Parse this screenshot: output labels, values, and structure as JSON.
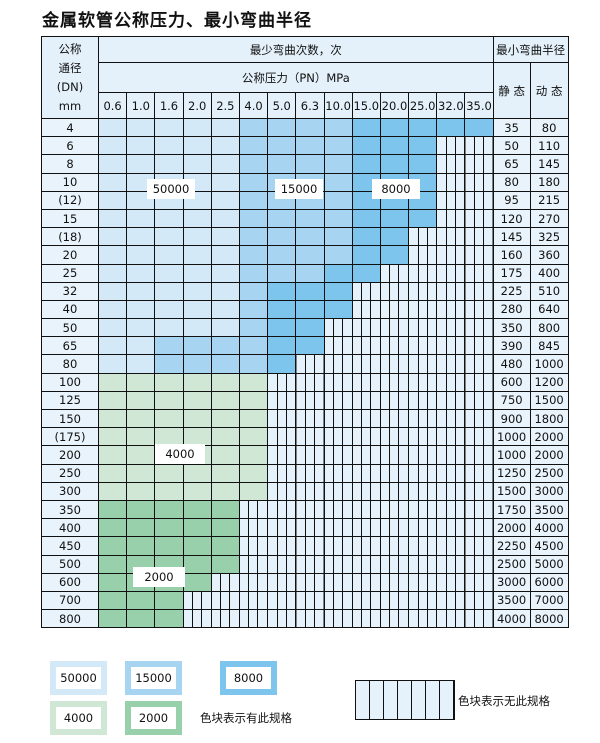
{
  "title": "金属软管公称压力、最小弯曲半径",
  "header": {
    "dn": [
      "公称",
      "通径",
      "(DN)",
      "mm"
    ],
    "cycles": "最少弯曲次数，次",
    "pressure": "公称压力（PN）MPa",
    "radius": "最小弯曲半径",
    "static": "静 态",
    "dynamic": "动 态",
    "pn": [
      "0.6",
      "1.0",
      "1.6",
      "2.0",
      "2.5",
      "4.0",
      "5.0",
      "6.3",
      "10.0",
      "15.0",
      "20.0",
      "25.0",
      "32.0",
      "35.0"
    ]
  },
  "colors": {
    "L": "#d4e9f8",
    "M": "#a6d4f1",
    "D": "#7ec5ee",
    "G": "#d0e7d5",
    "H": "#97d0aa",
    "none": "#e6f2fb"
  },
  "cell_codes": {
    "L": "50000",
    "M": "15000",
    "D": "8000",
    "G": "4000",
    "H": "2000",
    "X": "无此规格"
  },
  "rows": [
    {
      "dn": "4",
      "s": "35",
      "d": "80",
      "c": "LLLLLMMMMDDDDD"
    },
    {
      "dn": "6",
      "s": "50",
      "d": "110",
      "c": "LLLLLMMMMDDDXX"
    },
    {
      "dn": "8",
      "s": "65",
      "d": "145",
      "c": "LLLLLMMMMDDDXX"
    },
    {
      "dn": "10",
      "s": "80",
      "d": "180",
      "c": "LLLLLMMMMDDDXX"
    },
    {
      "dn": "(12)",
      "s": "95",
      "d": "215",
      "c": "LLLLLMMMMDDDXX"
    },
    {
      "dn": "15",
      "s": "120",
      "d": "270",
      "c": "LLLLLMMMMDDDXX"
    },
    {
      "dn": "(18)",
      "s": "145",
      "d": "325",
      "c": "LLLLLMMMMDDXXX"
    },
    {
      "dn": "20",
      "s": "160",
      "d": "360",
      "c": "LLLLLMMMMDDXXX"
    },
    {
      "dn": "25",
      "s": "175",
      "d": "400",
      "c": "LLLLLMMMDDXXXX"
    },
    {
      "dn": "32",
      "s": "225",
      "d": "510",
      "c": "LLLLLMDDDXXXXX"
    },
    {
      "dn": "40",
      "s": "280",
      "d": "640",
      "c": "LLLLLMDDDXXXXX"
    },
    {
      "dn": "50",
      "s": "350",
      "d": "800",
      "c": "LLLLLMDDXXXXXX"
    },
    {
      "dn": "65",
      "s": "390",
      "d": "845",
      "c": "LLMMMMDDXXXXXX"
    },
    {
      "dn": "80",
      "s": "480",
      "d": "1000",
      "c": "LLMMMMDXXXXXXX"
    },
    {
      "dn": "100",
      "s": "600",
      "d": "1200",
      "c": "GGGGGGXXXXXXXX"
    },
    {
      "dn": "125",
      "s": "750",
      "d": "1500",
      "c": "GGGGGGXXXXXXXX"
    },
    {
      "dn": "150",
      "s": "900",
      "d": "1800",
      "c": "GGGGGGXXXXXXXX"
    },
    {
      "dn": "(175)",
      "s": "1000",
      "d": "2000",
      "c": "GGGGGGXXXXXXXX"
    },
    {
      "dn": "200",
      "s": "1000",
      "d": "2000",
      "c": "GGGGGGXXXXXXXX"
    },
    {
      "dn": "250",
      "s": "1250",
      "d": "2500",
      "c": "GGGGGGXXXXXXXX"
    },
    {
      "dn": "300",
      "s": "1500",
      "d": "3000",
      "c": "GGGGGGXXXXXXXX"
    },
    {
      "dn": "350",
      "s": "1750",
      "d": "3500",
      "c": "HHHHHXXXXXXXXX"
    },
    {
      "dn": "400",
      "s": "2000",
      "d": "4000",
      "c": "HHHHHXXXXXXXXX"
    },
    {
      "dn": "450",
      "s": "2250",
      "d": "4500",
      "c": "HHHHHXXXXXXXXX"
    },
    {
      "dn": "500",
      "s": "2500",
      "d": "5000",
      "c": "HHHHHXXXXXXXXX"
    },
    {
      "dn": "600",
      "s": "3000",
      "d": "6000",
      "c": "HHHHXXXXXXXXXX"
    },
    {
      "dn": "700",
      "s": "3500",
      "d": "7000",
      "c": "HHHXXXXXXXXXXX"
    },
    {
      "dn": "800",
      "s": "4000",
      "d": "8000",
      "c": "HHHXXXXXXXXXXX"
    }
  ],
  "region_labels": {
    "L": "50000",
    "M": "15000",
    "D": "8000",
    "G": "4000",
    "H": "2000"
  },
  "legend": {
    "items": [
      {
        "code": "L",
        "label": "50000"
      },
      {
        "code": "M",
        "label": "15000"
      },
      {
        "code": "D",
        "label": "8000"
      },
      {
        "code": "G",
        "label": "4000"
      },
      {
        "code": "H",
        "label": "2000"
      }
    ],
    "has_text": "色块表示有此规格",
    "none_text": "色块表示无此规格"
  }
}
